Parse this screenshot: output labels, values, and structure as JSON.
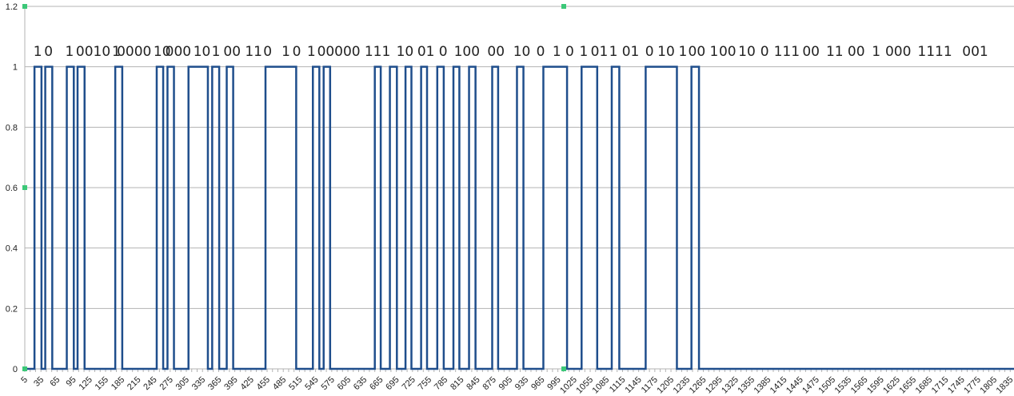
{
  "chart_data": {
    "type": "line",
    "step": true,
    "title": "",
    "xlabel": "",
    "ylabel": "",
    "grid": true,
    "xlim": [
      5,
      1842
    ],
    "ylim": [
      0,
      1.2
    ],
    "y_ticks": [
      "0",
      "0.2",
      "0.4",
      "0.6",
      "0.8",
      "1",
      "1.2"
    ],
    "x_tick_start": 5,
    "x_tick_step": 30,
    "x_tick_count": 62,
    "series": [
      {
        "color": "#1f4e8c",
        "high_intervals": [
          [
            23,
            36
          ],
          [
            43,
            56
          ],
          [
            83,
            96
          ],
          [
            103,
            116
          ],
          [
            173,
            186
          ],
          [
            250,
            262
          ],
          [
            270,
            282
          ],
          [
            309,
            345
          ],
          [
            353,
            366
          ],
          [
            380,
            392
          ],
          [
            452,
            509
          ],
          [
            540,
            552
          ],
          [
            560,
            572
          ],
          [
            655,
            666
          ],
          [
            683,
            696
          ],
          [
            712,
            723
          ],
          [
            741,
            752
          ],
          [
            771,
            783
          ],
          [
            801,
            812
          ],
          [
            830,
            842
          ],
          [
            873,
            884
          ],
          [
            919,
            931
          ],
          [
            968,
            1012
          ],
          [
            1039,
            1068
          ],
          [
            1095,
            1109
          ],
          [
            1158,
            1216
          ],
          [
            1243,
            1257
          ]
        ]
      }
    ],
    "annotations": [
      {
        "text": "1",
        "x": 29
      },
      {
        "text": "0",
        "x": 49
      },
      {
        "text": "1",
        "x": 88
      },
      {
        "text": "0010",
        "x": 132
      },
      {
        "text": "1",
        "x": 175
      },
      {
        "text": "0000",
        "x": 208
      },
      {
        "text": "10",
        "x": 260
      },
      {
        "text": "000",
        "x": 290
      },
      {
        "text": "10",
        "x": 334
      },
      {
        "text": "1",
        "x": 360
      },
      {
        "text": "00",
        "x": 390
      },
      {
        "text": "11",
        "x": 430
      },
      {
        "text": "0",
        "x": 456
      },
      {
        "text": "1",
        "x": 490
      },
      {
        "text": "0",
        "x": 510
      },
      {
        "text": "1",
        "x": 537
      },
      {
        "text": "00",
        "x": 564
      },
      {
        "text": "000",
        "x": 604
      },
      {
        "text": "111",
        "x": 660
      },
      {
        "text": "10",
        "x": 711
      },
      {
        "text": "01",
        "x": 750
      },
      {
        "text": "0",
        "x": 782
      },
      {
        "text": "100",
        "x": 826
      },
      {
        "text": "00",
        "x": 880
      },
      {
        "text": "10",
        "x": 928
      },
      {
        "text": "0",
        "x": 963
      },
      {
        "text": "1",
        "x": 993
      },
      {
        "text": "0",
        "x": 1017
      },
      {
        "text": "1",
        "x": 1043
      },
      {
        "text": "01",
        "x": 1072
      },
      {
        "text": "1",
        "x": 1098
      },
      {
        "text": "01",
        "x": 1130
      },
      {
        "text": "0",
        "x": 1165
      },
      {
        "text": "10",
        "x": 1196
      },
      {
        "text": "1",
        "x": 1227
      },
      {
        "text": "00",
        "x": 1253
      },
      {
        "text": "1",
        "x": 1285
      },
      {
        "text": "00",
        "x": 1310
      },
      {
        "text": "10",
        "x": 1346
      },
      {
        "text": "0",
        "x": 1379
      },
      {
        "text": "111",
        "x": 1420
      },
      {
        "text": "00",
        "x": 1465
      },
      {
        "text": "11",
        "x": 1509
      },
      {
        "text": "00",
        "x": 1549
      },
      {
        "text": "1",
        "x": 1586
      },
      {
        "text": "000",
        "x": 1627
      },
      {
        "text": "1111",
        "x": 1695
      },
      {
        "text": "001",
        "x": 1770
      }
    ]
  }
}
